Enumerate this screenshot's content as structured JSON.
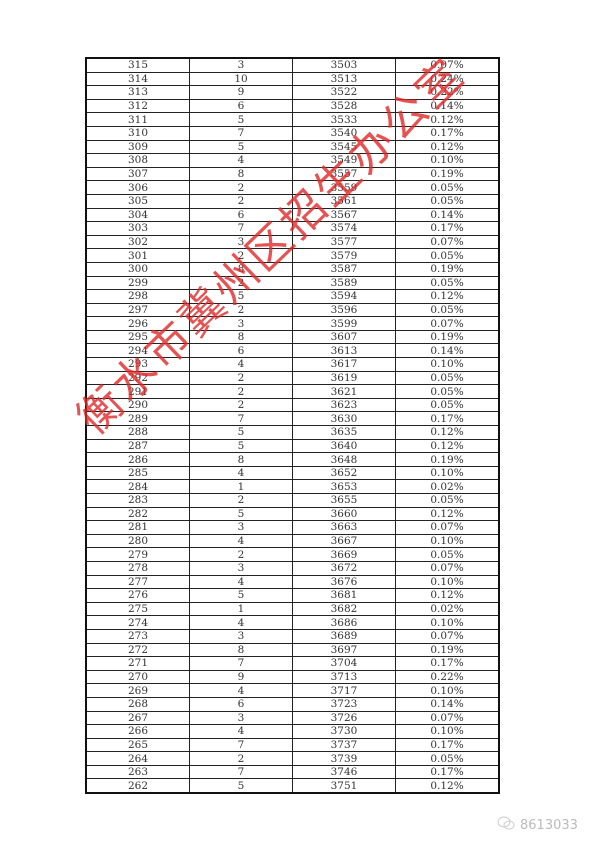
{
  "table": {
    "rows": [
      [
        "315",
        "3",
        "3503",
        "0.07%"
      ],
      [
        "314",
        "10",
        "3513",
        "0.24%"
      ],
      [
        "313",
        "9",
        "3522",
        "0.22%"
      ],
      [
        "312",
        "6",
        "3528",
        "0.14%"
      ],
      [
        "311",
        "5",
        "3533",
        "0.12%"
      ],
      [
        "310",
        "7",
        "3540",
        "0.17%"
      ],
      [
        "309",
        "5",
        "3545",
        "0.12%"
      ],
      [
        "308",
        "4",
        "3549",
        "0.10%"
      ],
      [
        "307",
        "8",
        "3557",
        "0.19%"
      ],
      [
        "306",
        "2",
        "3559",
        "0.05%"
      ],
      [
        "305",
        "2",
        "3561",
        "0.05%"
      ],
      [
        "304",
        "6",
        "3567",
        "0.14%"
      ],
      [
        "303",
        "7",
        "3574",
        "0.17%"
      ],
      [
        "302",
        "3",
        "3577",
        "0.07%"
      ],
      [
        "301",
        "2",
        "3579",
        "0.05%"
      ],
      [
        "300",
        "8",
        "3587",
        "0.19%"
      ],
      [
        "299",
        "2",
        "3589",
        "0.05%"
      ],
      [
        "298",
        "5",
        "3594",
        "0.12%"
      ],
      [
        "297",
        "2",
        "3596",
        "0.05%"
      ],
      [
        "296",
        "3",
        "3599",
        "0.07%"
      ],
      [
        "295",
        "8",
        "3607",
        "0.19%"
      ],
      [
        "294",
        "6",
        "3613",
        "0.14%"
      ],
      [
        "293",
        "4",
        "3617",
        "0.10%"
      ],
      [
        "292",
        "2",
        "3619",
        "0.05%"
      ],
      [
        "291",
        "2",
        "3621",
        "0.05%"
      ],
      [
        "290",
        "2",
        "3623",
        "0.05%"
      ],
      [
        "289",
        "7",
        "3630",
        "0.17%"
      ],
      [
        "288",
        "5",
        "3635",
        "0.12%"
      ],
      [
        "287",
        "5",
        "3640",
        "0.12%"
      ],
      [
        "286",
        "8",
        "3648",
        "0.19%"
      ],
      [
        "285",
        "4",
        "3652",
        "0.10%"
      ],
      [
        "284",
        "1",
        "3653",
        "0.02%"
      ],
      [
        "283",
        "2",
        "3655",
        "0.05%"
      ],
      [
        "282",
        "5",
        "3660",
        "0.12%"
      ],
      [
        "281",
        "3",
        "3663",
        "0.07%"
      ],
      [
        "280",
        "4",
        "3667",
        "0.10%"
      ],
      [
        "279",
        "2",
        "3669",
        "0.05%"
      ],
      [
        "278",
        "3",
        "3672",
        "0.07%"
      ],
      [
        "277",
        "4",
        "3676",
        "0.10%"
      ],
      [
        "276",
        "5",
        "3681",
        "0.12%"
      ],
      [
        "275",
        "1",
        "3682",
        "0.02%"
      ],
      [
        "274",
        "4",
        "3686",
        "0.10%"
      ],
      [
        "273",
        "3",
        "3689",
        "0.07%"
      ],
      [
        "272",
        "8",
        "3697",
        "0.19%"
      ],
      [
        "271",
        "7",
        "3704",
        "0.17%"
      ],
      [
        "270",
        "9",
        "3713",
        "0.22%"
      ],
      [
        "269",
        "4",
        "3717",
        "0.10%"
      ],
      [
        "268",
        "6",
        "3723",
        "0.14%"
      ],
      [
        "267",
        "3",
        "3726",
        "0.07%"
      ],
      [
        "266",
        "4",
        "3730",
        "0.10%"
      ],
      [
        "265",
        "7",
        "3737",
        "0.17%"
      ],
      [
        "264",
        "2",
        "3739",
        "0.05%"
      ],
      [
        "263",
        "7",
        "3746",
        "0.17%"
      ],
      [
        "262",
        "5",
        "3751",
        "0.12%"
      ]
    ]
  },
  "watermark": {
    "text": "衡水市冀州区招生办公室",
    "color": "#e02828"
  },
  "logo": {
    "icon": "wechat-icon",
    "text": "8613033"
  }
}
